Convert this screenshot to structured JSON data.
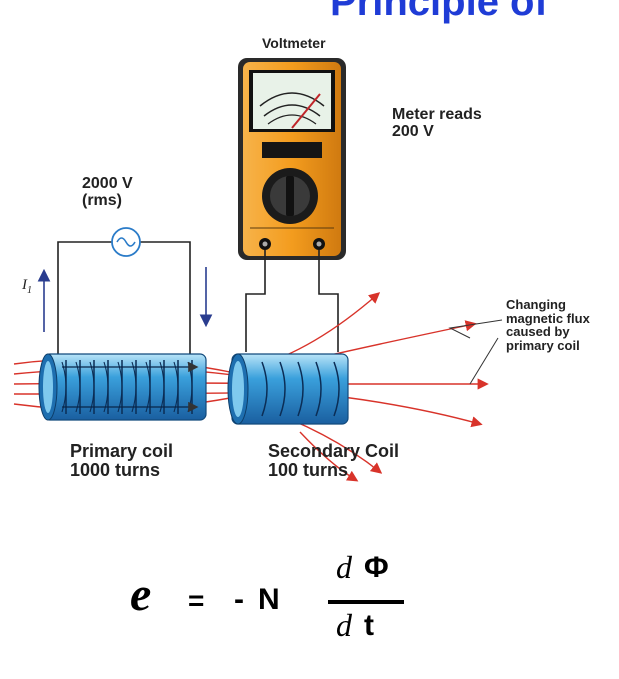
{
  "title": "Principle of",
  "diagram": {
    "voltmeter_label": "Voltmeter",
    "meter_reading_line1": "Meter reads",
    "meter_reading_line2": "200 V",
    "source_voltage": "2000 V",
    "source_rms": "(rms)",
    "current_label": "I",
    "current_subscript": "1",
    "flux_line1": "Changing",
    "flux_line2": "magnetic flux",
    "flux_line3": "caused by",
    "flux_line4": "primary coil",
    "primary_name": "Primary coil",
    "primary_turns": "1000 turns",
    "secondary_name": "Secondary Coil",
    "secondary_turns": "100 turns"
  },
  "equation": {
    "emf": "e",
    "equals": "=",
    "minus": "-",
    "n": "N",
    "d_top": "d",
    "phi": "Φ",
    "d_bottom": "d",
    "t": "t"
  },
  "colors": {
    "title": "#1f3cd6",
    "coil": "#3aa0dc",
    "flux_lines": "#d8332a",
    "meter_body": "#f39c1e",
    "meter_screen": "#e8f2e8"
  }
}
